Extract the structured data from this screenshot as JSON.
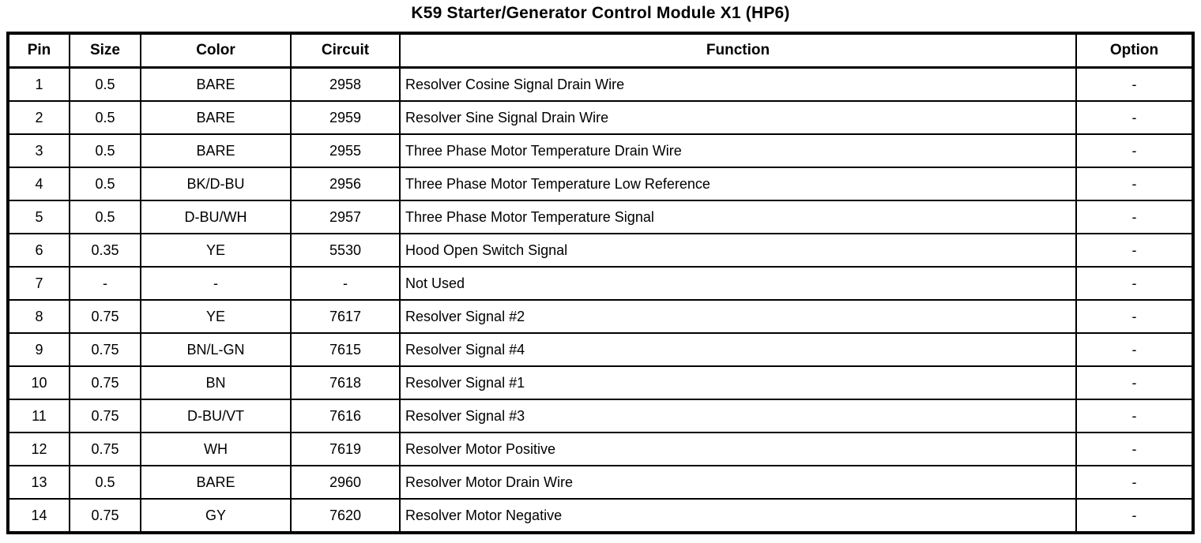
{
  "title": "K59 Starter/Generator Control Module X1 (HP6)",
  "table": {
    "headers": [
      "Pin",
      "Size",
      "Color",
      "Circuit",
      "Function",
      "Option"
    ],
    "rows": [
      [
        "1",
        "0.5",
        "BARE",
        "2958",
        "Resolver Cosine Signal Drain Wire",
        "-"
      ],
      [
        "2",
        "0.5",
        "BARE",
        "2959",
        "Resolver Sine Signal Drain Wire",
        "-"
      ],
      [
        "3",
        "0.5",
        "BARE",
        "2955",
        "Three Phase Motor Temperature Drain Wire",
        "-"
      ],
      [
        "4",
        "0.5",
        "BK/D-BU",
        "2956",
        "Three Phase Motor Temperature Low Reference",
        "-"
      ],
      [
        "5",
        "0.5",
        "D-BU/WH",
        "2957",
        "Three Phase Motor Temperature Signal",
        "-"
      ],
      [
        "6",
        "0.35",
        "YE",
        "5530",
        "Hood Open Switch Signal",
        "-"
      ],
      [
        "7",
        "-",
        "-",
        "-",
        "Not Used",
        "-"
      ],
      [
        "8",
        "0.75",
        "YE",
        "7617",
        "Resolver Signal #2",
        "-"
      ],
      [
        "9",
        "0.75",
        "BN/L-GN",
        "7615",
        "Resolver Signal #4",
        "-"
      ],
      [
        "10",
        "0.75",
        "BN",
        "7618",
        "Resolver Signal #1",
        "-"
      ],
      [
        "11",
        "0.75",
        "D-BU/VT",
        "7616",
        "Resolver Signal #3",
        "-"
      ],
      [
        "12",
        "0.75",
        "WH",
        "7619",
        "Resolver Motor Positive",
        "-"
      ],
      [
        "13",
        "0.5",
        "BARE",
        "2960",
        "Resolver Motor Drain Wire",
        "-"
      ],
      [
        "14",
        "0.75",
        "GY",
        "7620",
        "Resolver Motor Negative",
        "-"
      ]
    ]
  }
}
